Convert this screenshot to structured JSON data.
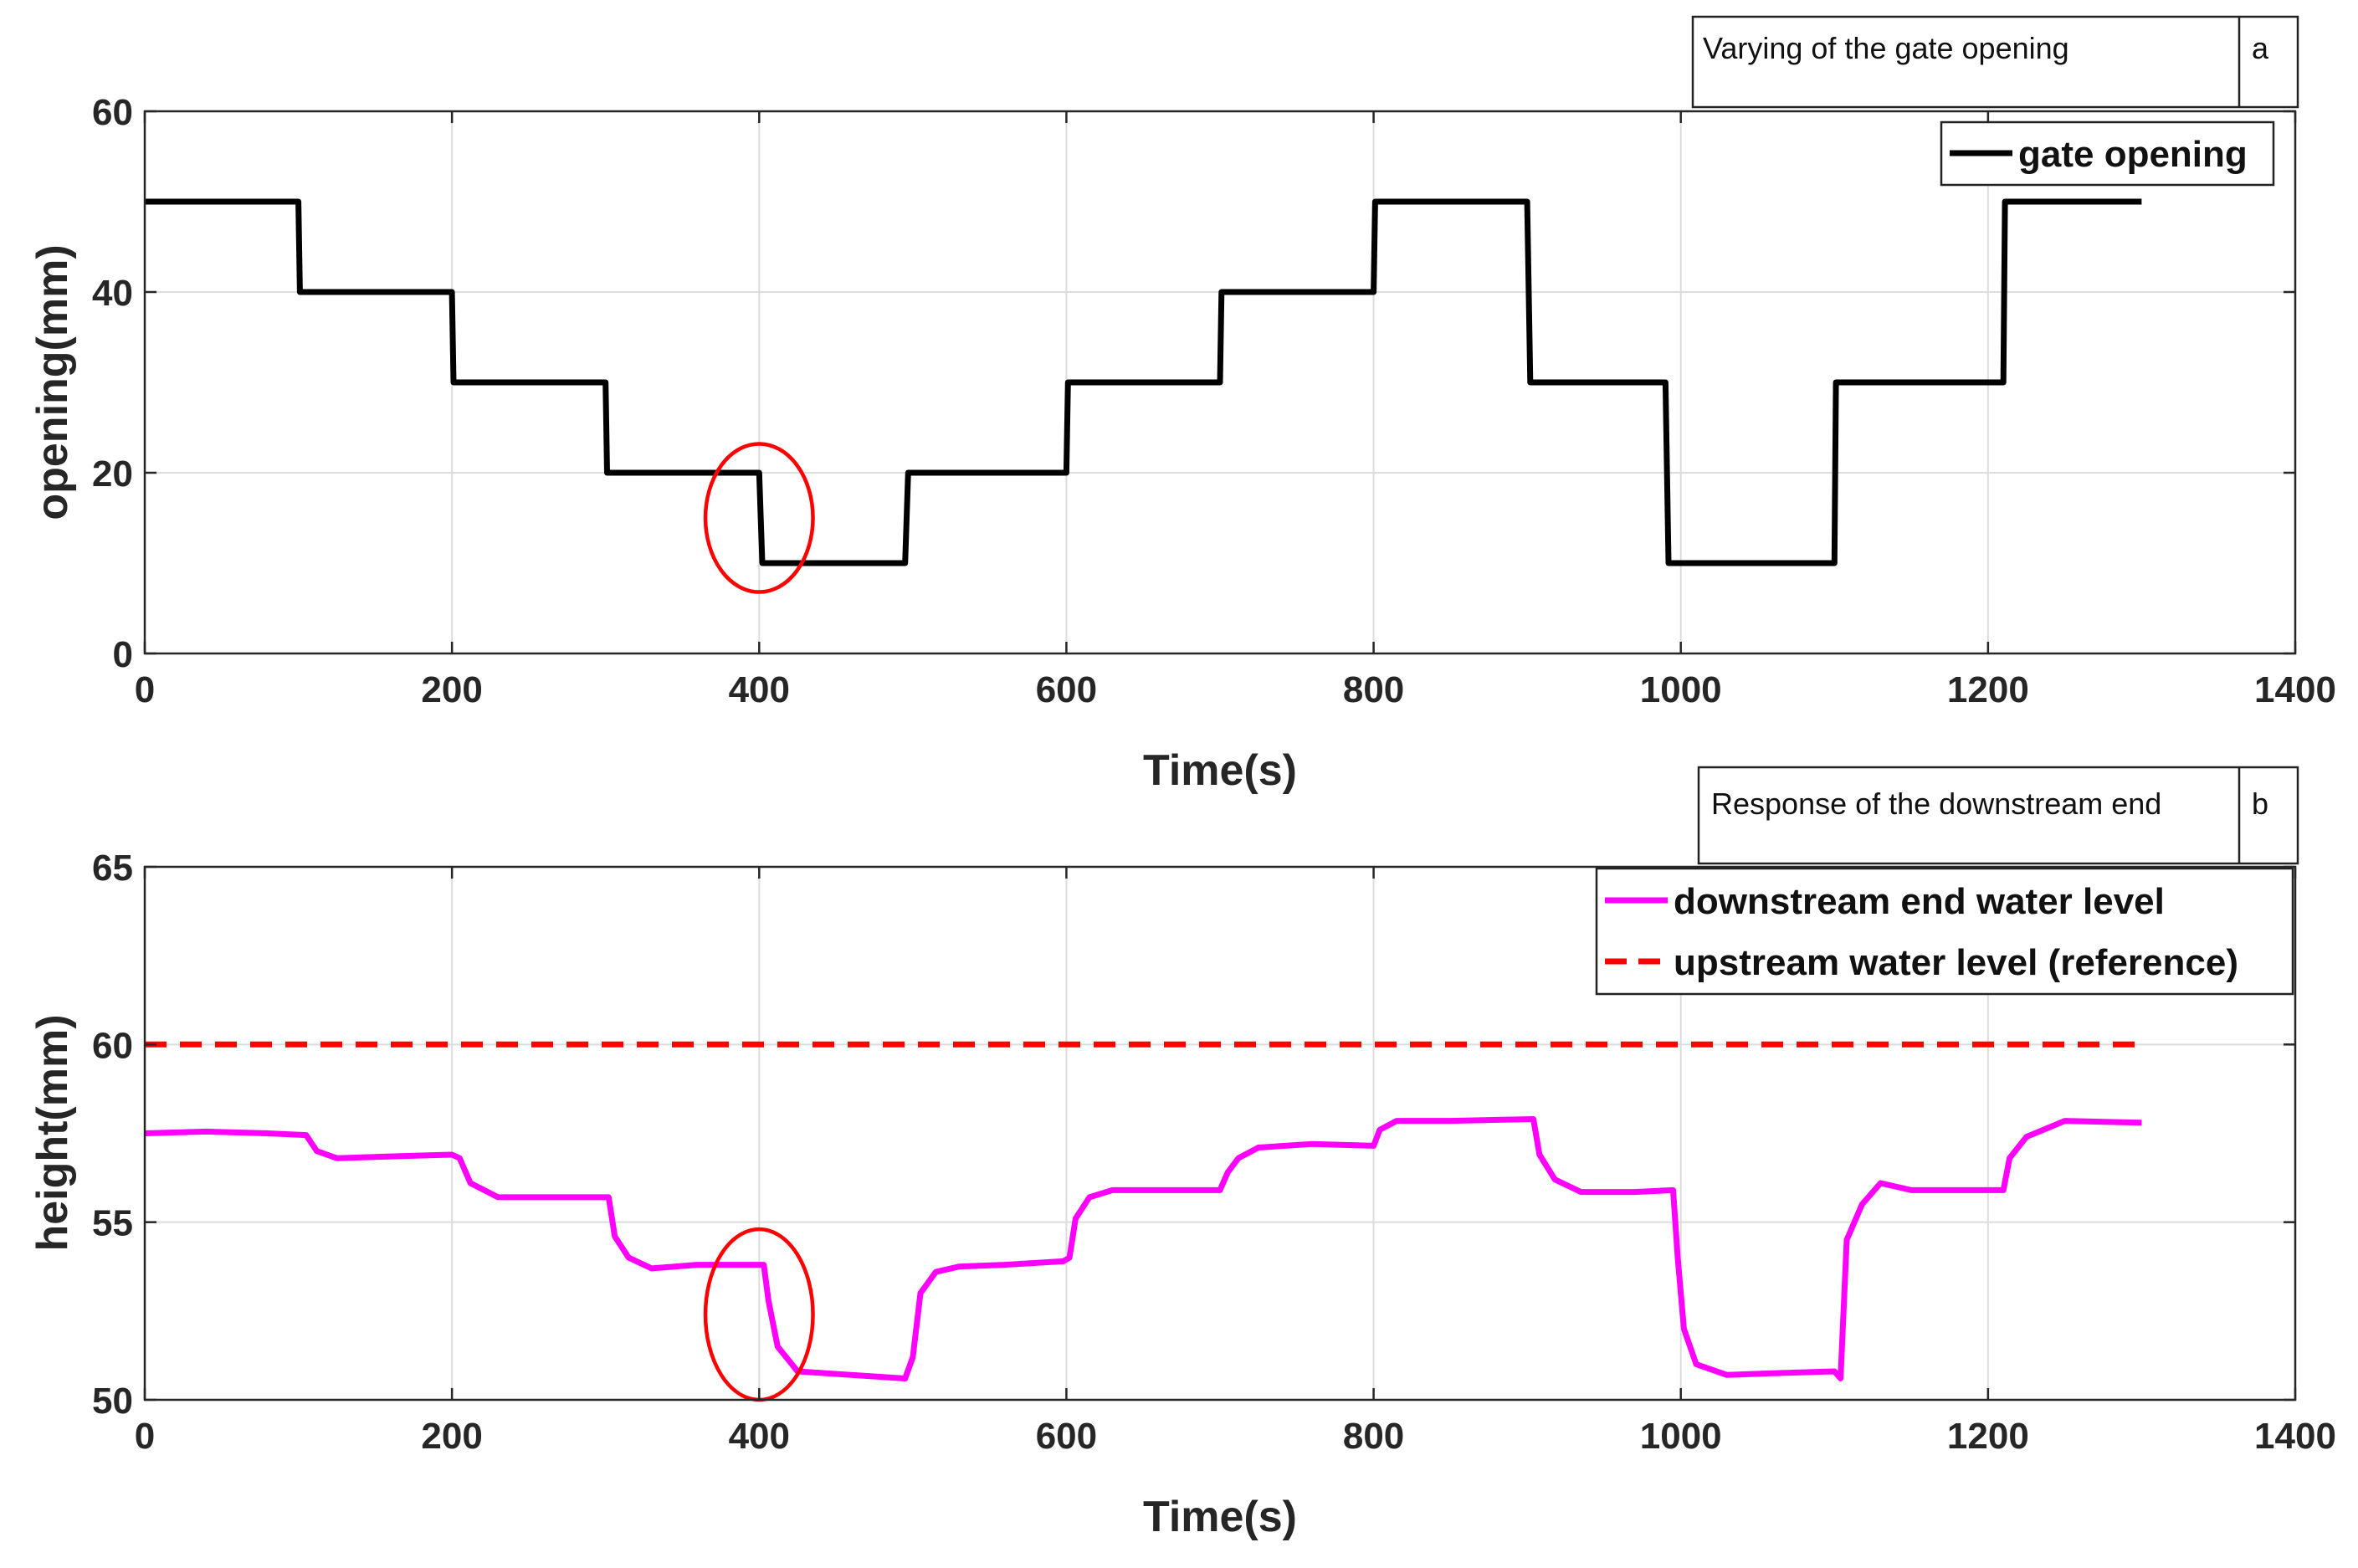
{
  "chart_data": [
    {
      "type": "line",
      "panel": "a",
      "title": "Varying of the gate opening",
      "xlabel": "Time(s)",
      "ylabel": "opening(mm)",
      "xlim": [
        0,
        1400
      ],
      "ylim": [
        0,
        60
      ],
      "xticks": [
        0,
        200,
        400,
        600,
        800,
        1000,
        1200,
        1400
      ],
      "yticks": [
        0,
        20,
        40,
        60
      ],
      "grid": true,
      "legend_position": "top-right",
      "series": [
        {
          "name": "gate opening",
          "color": "#000000",
          "style": "solid",
          "points": [
            [
              0,
              50
            ],
            [
              100,
              50
            ],
            [
              101,
              40
            ],
            [
              200,
              40
            ],
            [
              201,
              30
            ],
            [
              300,
              30
            ],
            [
              301,
              20
            ],
            [
              400,
              20
            ],
            [
              402,
              10
            ],
            [
              495,
              10
            ],
            [
              497,
              20
            ],
            [
              600,
              20
            ],
            [
              601,
              30
            ],
            [
              700,
              30
            ],
            [
              701,
              40
            ],
            [
              800,
              40
            ],
            [
              801,
              50
            ],
            [
              900,
              50
            ],
            [
              902,
              30
            ],
            [
              990,
              30
            ],
            [
              992,
              10
            ],
            [
              1100,
              10
            ],
            [
              1101,
              30
            ],
            [
              1210,
              30
            ],
            [
              1211,
              50
            ],
            [
              1300,
              50
            ]
          ]
        }
      ],
      "annotations": [
        {
          "type": "ellipse",
          "color": "#ff0000",
          "cx": 400,
          "cy": 15,
          "rx": 35,
          "ry": 8.2
        }
      ]
    },
    {
      "type": "line",
      "panel": "b",
      "title": "Response of the downstream end",
      "xlabel": "Time(s)",
      "ylabel": "height(mm)",
      "xlim": [
        0,
        1400
      ],
      "ylim": [
        50,
        65
      ],
      "xticks": [
        0,
        200,
        400,
        600,
        800,
        1000,
        1200,
        1400
      ],
      "yticks": [
        50,
        55,
        60,
        65
      ],
      "grid": true,
      "legend_position": "top-right",
      "series": [
        {
          "name": "downstream end water level",
          "color": "#ff00ff",
          "style": "solid",
          "points": [
            [
              0,
              57.5
            ],
            [
              40,
              57.55
            ],
            [
              80,
              57.5
            ],
            [
              105,
              57.45
            ],
            [
              112,
              57.0
            ],
            [
              125,
              56.8
            ],
            [
              160,
              56.85
            ],
            [
              200,
              56.9
            ],
            [
              205,
              56.8
            ],
            [
              212,
              56.1
            ],
            [
              230,
              55.7
            ],
            [
              260,
              55.7
            ],
            [
              295,
              55.7
            ],
            [
              302,
              55.7
            ],
            [
              306,
              54.6
            ],
            [
              315,
              54.0
            ],
            [
              330,
              53.7
            ],
            [
              360,
              53.8
            ],
            [
              403,
              53.8
            ],
            [
              406,
              52.8
            ],
            [
              412,
              51.5
            ],
            [
              425,
              50.8
            ],
            [
              460,
              50.7
            ],
            [
              495,
              50.6
            ],
            [
              500,
              51.2
            ],
            [
              505,
              53.0
            ],
            [
              515,
              53.6
            ],
            [
              530,
              53.75
            ],
            [
              560,
              53.8
            ],
            [
              598,
              53.9
            ],
            [
              602,
              54.0
            ],
            [
              606,
              55.1
            ],
            [
              615,
              55.7
            ],
            [
              630,
              55.9
            ],
            [
              665,
              55.9
            ],
            [
              700,
              55.9
            ],
            [
              705,
              56.4
            ],
            [
              712,
              56.8
            ],
            [
              725,
              57.1
            ],
            [
              760,
              57.2
            ],
            [
              800,
              57.15
            ],
            [
              804,
              57.6
            ],
            [
              815,
              57.85
            ],
            [
              850,
              57.85
            ],
            [
              904,
              57.9
            ],
            [
              908,
              56.9
            ],
            [
              918,
              56.2
            ],
            [
              935,
              55.85
            ],
            [
              970,
              55.85
            ],
            [
              995,
              55.9
            ],
            [
              998,
              54.0
            ],
            [
              1002,
              52.0
            ],
            [
              1010,
              51.0
            ],
            [
              1030,
              50.7
            ],
            [
              1060,
              50.75
            ],
            [
              1100,
              50.8
            ],
            [
              1104,
              50.6
            ],
            [
              1108,
              54.5
            ],
            [
              1118,
              55.5
            ],
            [
              1130,
              56.1
            ],
            [
              1150,
              55.9
            ],
            [
              1190,
              55.9
            ],
            [
              1210,
              55.9
            ],
            [
              1214,
              56.8
            ],
            [
              1225,
              57.4
            ],
            [
              1250,
              57.85
            ],
            [
              1300,
              57.8
            ]
          ]
        },
        {
          "name": "upstream water level (reference)",
          "color": "#ff0000",
          "style": "dashed",
          "points": [
            [
              0,
              60
            ],
            [
              1300,
              60
            ]
          ]
        }
      ],
      "annotations": [
        {
          "type": "ellipse",
          "color": "#ff0000",
          "cx": 400,
          "cy": 52.4,
          "rx": 35,
          "ry": 2.4
        }
      ]
    }
  ],
  "panel_labels": {
    "a": "a",
    "b": "b"
  }
}
